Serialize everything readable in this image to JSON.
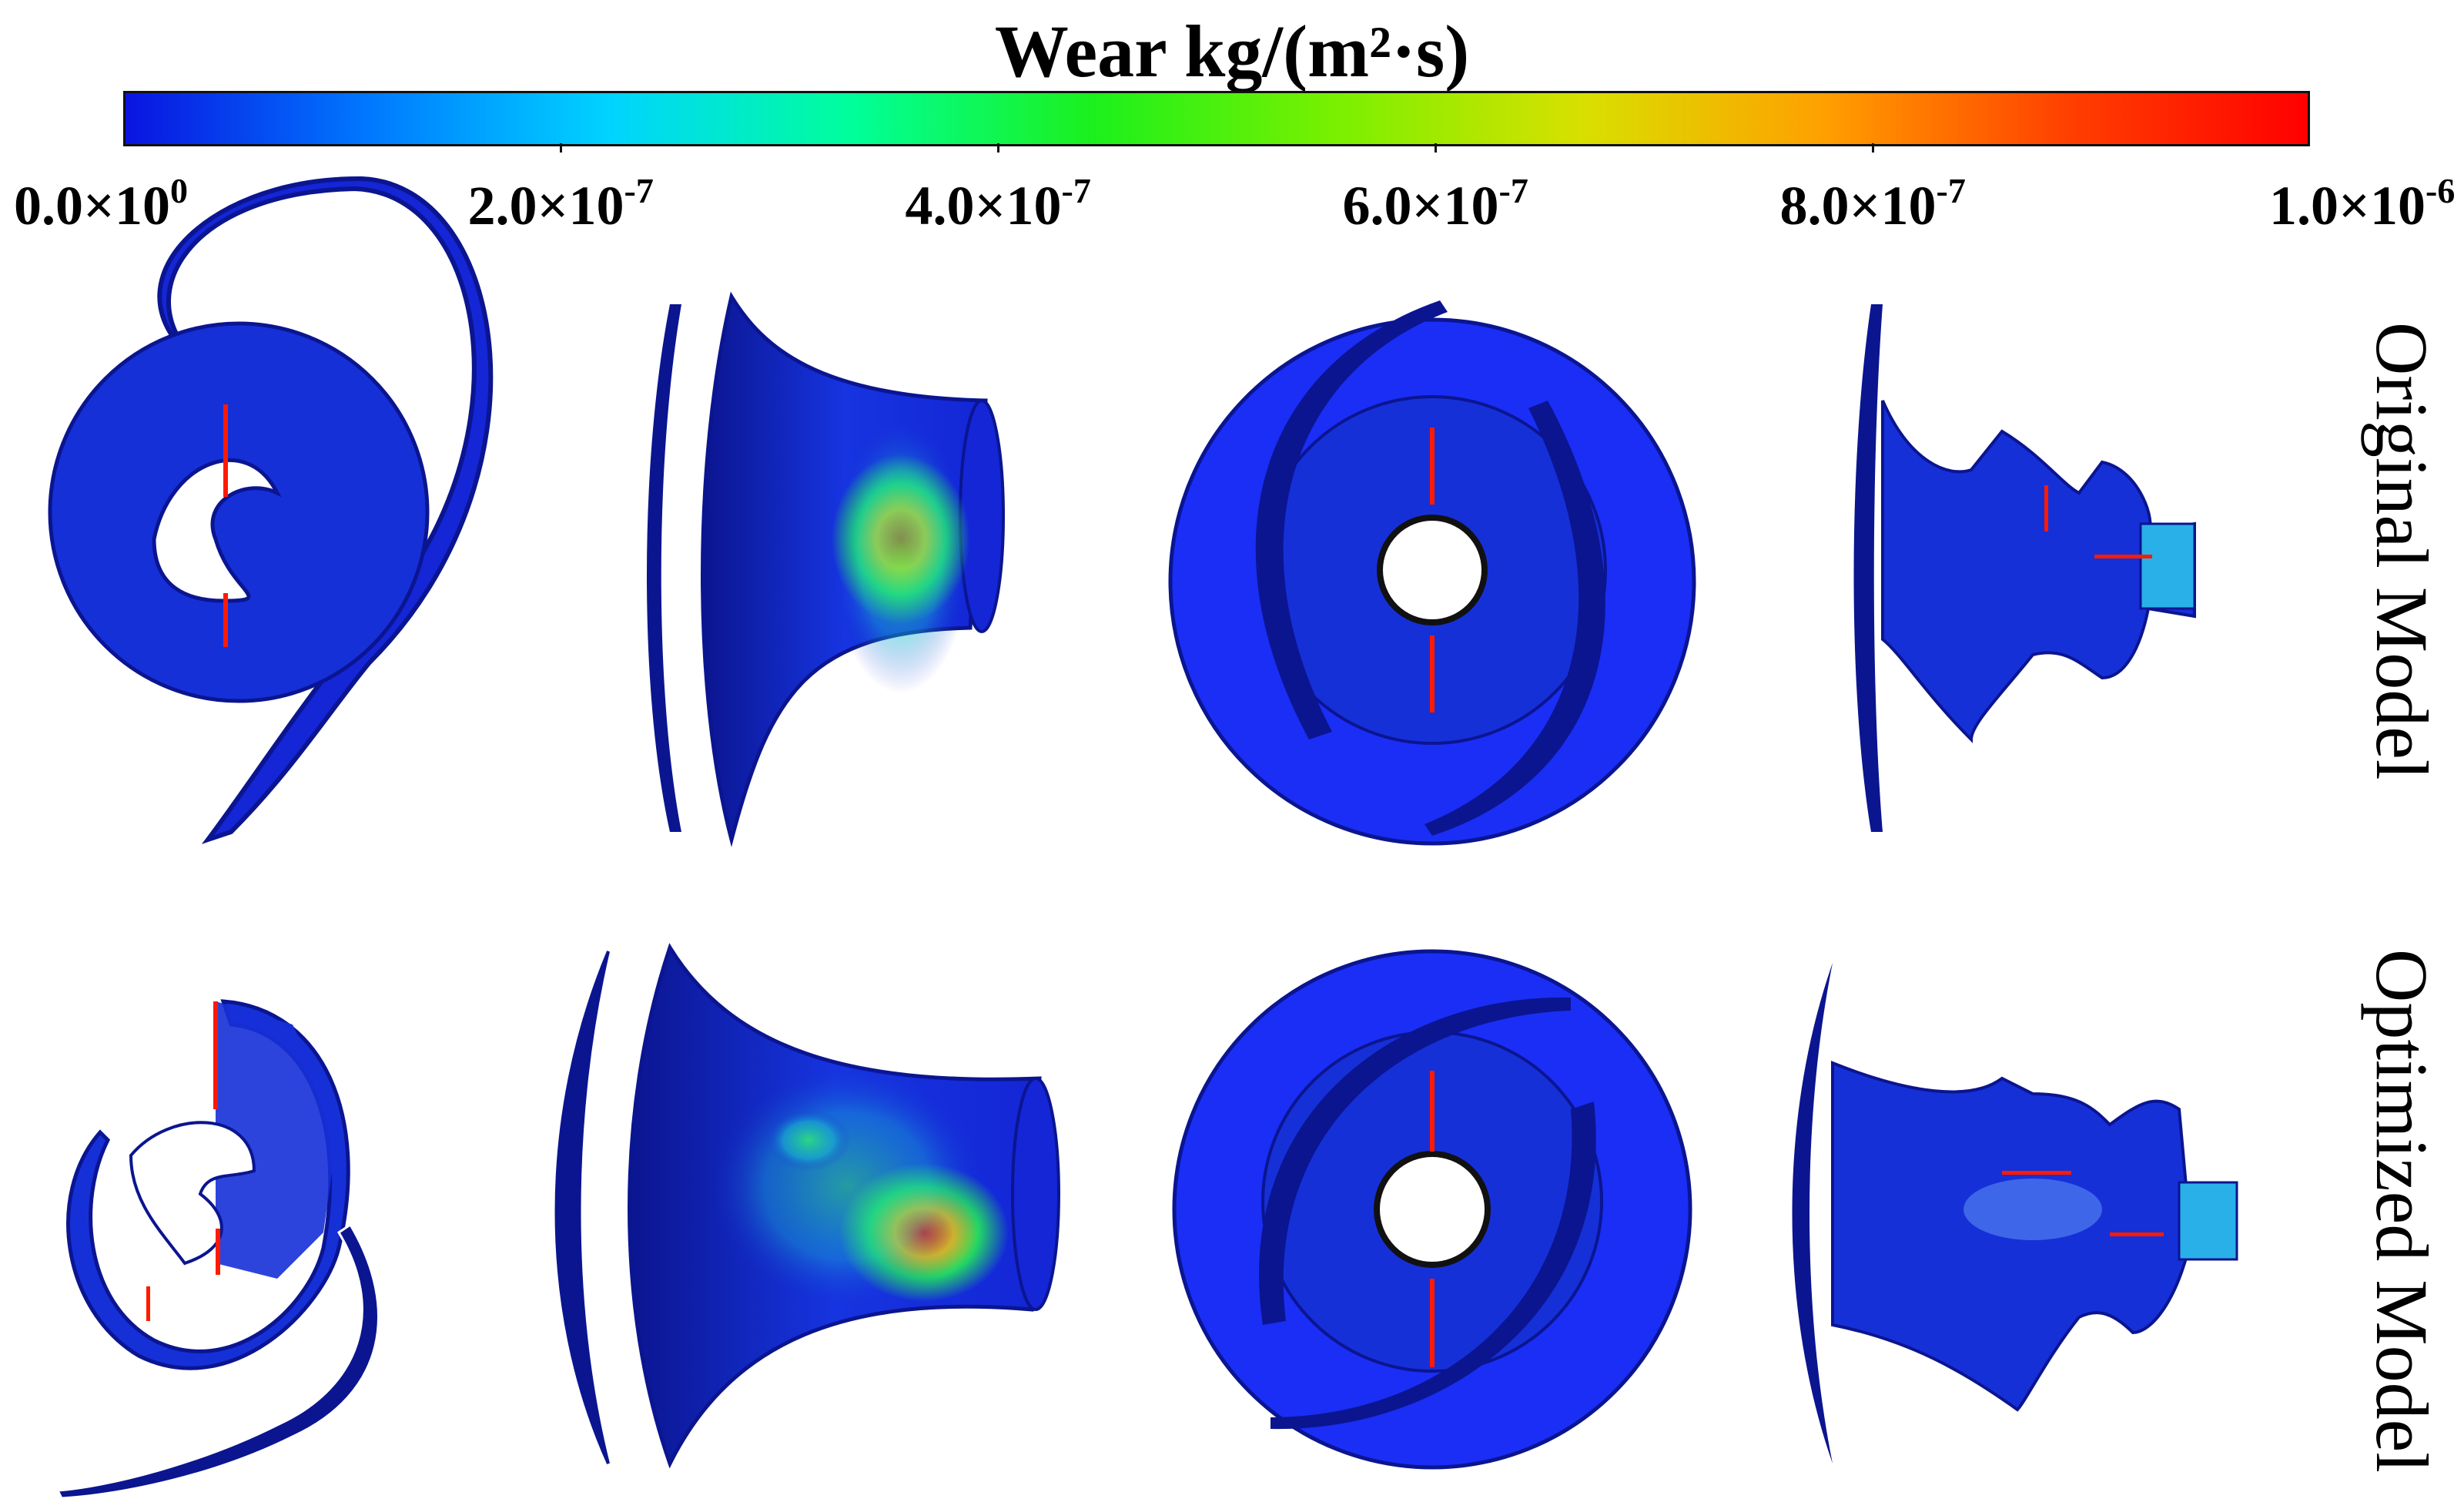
{
  "colorbar": {
    "title": "Wear kg/(m²·s)",
    "min": 0,
    "max": 1e-06,
    "colormap": [
      "#0a14e0",
      "#0078ff",
      "#00d4ff",
      "#00ff9a",
      "#1cf01c",
      "#7bf000",
      "#d8e000",
      "#ffa000",
      "#ff4000",
      "#ff0000"
    ],
    "ticks": [
      {
        "mantissa": "0.0×10",
        "exp": "0",
        "value": 0
      },
      {
        "mantissa": "2.0×10",
        "exp": "-7",
        "value": 2e-07
      },
      {
        "mantissa": "4.0×10",
        "exp": "-7",
        "value": 4e-07
      },
      {
        "mantissa": "6.0×10",
        "exp": "-7",
        "value": 6e-07
      },
      {
        "mantissa": "8.0×10",
        "exp": "-7",
        "value": 8e-07
      },
      {
        "mantissa": "1.0×10",
        "exp": "-6",
        "value": 1e-06
      }
    ]
  },
  "rows": [
    {
      "label": "Original Model"
    },
    {
      "label": "Optimized Model"
    }
  ],
  "colors": {
    "base_blue": "#1426d6",
    "dark_edge": "#0b1590",
    "hot_red": "#ff1a00",
    "warm_green": "#2ee05a"
  }
}
